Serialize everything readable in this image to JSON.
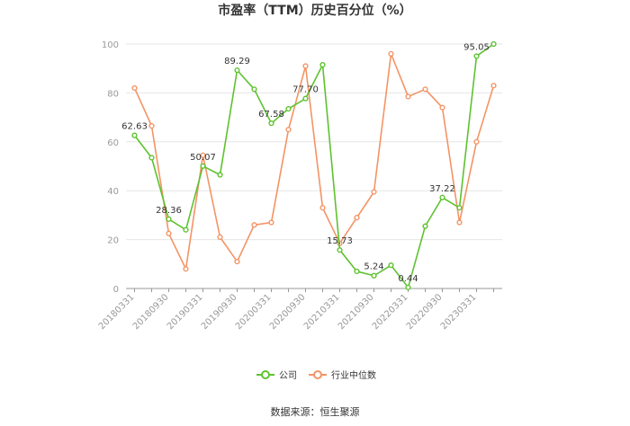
{
  "chart_data": {
    "type": "line",
    "title": "市盈率（TTM）历史百分位（%）",
    "xlabel": "",
    "ylabel": "",
    "ylim": [
      0,
      100
    ],
    "yticks": [
      0,
      20,
      40,
      60,
      80,
      100
    ],
    "grid": true,
    "legend_position": "bottom",
    "x": [
      "20180331",
      "20180630",
      "20180930",
      "20181231",
      "20190331",
      "20190630",
      "20190930",
      "20191231",
      "20200331",
      "20200630",
      "20200930",
      "20201231",
      "20210331",
      "20210630",
      "20210930",
      "20211231",
      "20220331",
      "20220630",
      "20220930",
      "20221231",
      "20230331",
      "20230630"
    ],
    "x_tick_labels": [
      "20180331",
      "20180930",
      "20190331",
      "20190930",
      "20200331",
      "20200930",
      "20210331",
      "20210930",
      "20220331",
      "20220930",
      "20230331"
    ],
    "series": [
      {
        "name": "公司",
        "color": "#5ec22f",
        "values": [
          62.63,
          53.5,
          28.36,
          24.0,
          50.07,
          46.5,
          89.29,
          81.5,
          67.58,
          73.5,
          77.7,
          91.5,
          15.73,
          7.0,
          5.24,
          9.5,
          0.44,
          25.5,
          37.22,
          33.0,
          95.05,
          100.0
        ],
        "labels": {
          "0": "62.63",
          "2": "28.36",
          "4": "50.07",
          "6": "89.29",
          "8": "67.58",
          "10": "77.70",
          "12": "15.73",
          "14": "5.24",
          "16": "0.44",
          "18": "37.22",
          "20": "95.05"
        }
      },
      {
        "name": "行业中位数",
        "color": "#f39465",
        "values": [
          82.0,
          66.5,
          22.5,
          8.0,
          54.5,
          21.0,
          11.0,
          26.0,
          27.0,
          65.0,
          91.0,
          33.0,
          18.5,
          29.0,
          39.5,
          96.0,
          78.5,
          81.5,
          74.0,
          27.0,
          60.0,
          83.0
        ]
      }
    ],
    "source": "数据来源：恒生聚源"
  }
}
